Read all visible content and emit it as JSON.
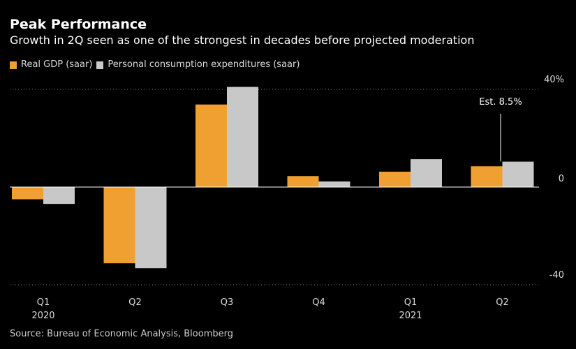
{
  "header": {
    "title": "Peak Performance",
    "subtitle": "Growth in 2Q seen as one of the strongest in decades before projected moderation"
  },
  "legend": {
    "items": [
      {
        "label": "Real GDP (saar)",
        "color": "#f0a030"
      },
      {
        "label": "Personal consumption expenditures (saar)",
        "color": "#c8c8c8"
      }
    ]
  },
  "source": "Source: Bureau of Economic Analysis, Bloomberg",
  "chart_data": {
    "type": "bar",
    "categories": [
      "Q1",
      "Q2",
      "Q3",
      "Q4",
      "Q1",
      "Q2"
    ],
    "category_years": [
      "2020",
      "",
      "",
      "",
      "2021",
      ""
    ],
    "series": [
      {
        "name": "Real GDP (saar)",
        "color": "#f0a030",
        "values": [
          -5.0,
          -31.2,
          33.8,
          4.5,
          6.3,
          8.5
        ]
      },
      {
        "name": "Personal consumption expenditures (saar)",
        "color": "#c8c8c8",
        "values": [
          -6.9,
          -33.2,
          41.0,
          2.3,
          11.4,
          10.4
        ]
      }
    ],
    "ylim": [
      -40,
      40
    ],
    "yticks": [
      {
        "value": 40,
        "label": "40%"
      },
      {
        "value": 0,
        "label": "0"
      },
      {
        "value": -40,
        "label": "-40"
      }
    ],
    "axis_side": "right",
    "annotation": {
      "text": "Est. 8.5%",
      "category_index": 5,
      "series_index": 0
    },
    "gridlines": "dotted at 40 and -40; solid at 0"
  }
}
